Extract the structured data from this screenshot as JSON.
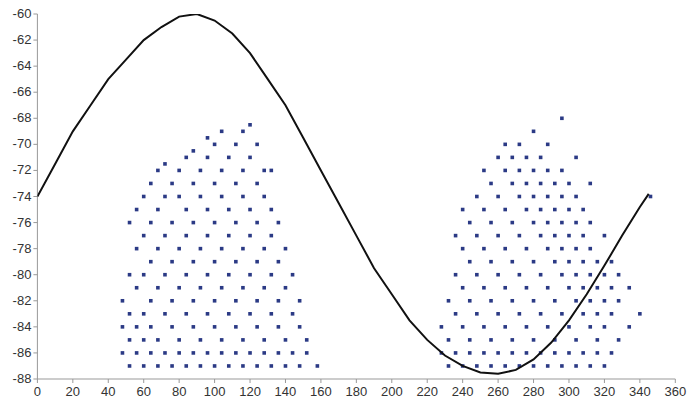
{
  "chart_data": {
    "type": "scatter",
    "xlim": [
      0,
      360
    ],
    "xticks": [
      0,
      20,
      40,
      60,
      80,
      100,
      120,
      140,
      160,
      180,
      200,
      220,
      240,
      260,
      280,
      300,
      320,
      340,
      360
    ],
    "ylim": [
      -88,
      -60
    ],
    "yticks": [
      -88,
      -86,
      -84,
      -82,
      -80,
      -78,
      -76,
      -74,
      -72,
      -70,
      -68,
      -66,
      -64,
      -62,
      -60
    ],
    "grid": false,
    "series": [
      {
        "type": "scatter",
        "color": "#2b3a85",
        "marker": "square",
        "x": [
          48,
          48,
          48,
          52,
          52,
          52,
          52,
          52,
          56,
          56,
          56,
          56,
          56,
          60,
          60,
          60,
          60,
          60,
          60,
          64,
          64,
          64,
          64,
          64,
          64,
          68,
          68,
          68,
          68,
          68,
          68,
          72,
          72,
          72,
          72,
          72,
          72,
          76,
          76,
          76,
          76,
          76,
          76,
          80,
          80,
          80,
          80,
          80,
          80,
          84,
          84,
          84,
          84,
          84,
          84,
          88,
          88,
          88,
          88,
          88,
          88,
          88,
          92,
          92,
          92,
          92,
          92,
          92,
          96,
          96,
          96,
          96,
          96,
          96,
          96,
          100,
          100,
          100,
          100,
          100,
          100,
          100,
          104,
          104,
          104,
          104,
          104,
          104,
          104,
          108,
          108,
          108,
          108,
          108,
          108,
          112,
          112,
          112,
          112,
          112,
          112,
          112,
          116,
          116,
          116,
          116,
          116,
          116,
          116,
          120,
          120,
          120,
          120,
          120,
          120,
          120,
          124,
          124,
          124,
          124,
          124,
          124,
          124,
          128,
          128,
          128,
          128,
          128,
          128,
          132,
          132,
          132,
          132,
          132,
          132,
          136,
          136,
          136,
          136,
          136,
          140,
          140,
          140,
          140,
          144,
          144,
          144,
          148,
          148,
          148,
          152,
          152,
          158,
          228,
          228,
          232,
          232,
          232,
          236,
          236,
          236,
          236,
          240,
          240,
          240,
          240,
          240,
          244,
          244,
          244,
          244,
          244,
          248,
          248,
          248,
          248,
          248,
          252,
          252,
          252,
          252,
          252,
          252,
          256,
          256,
          256,
          256,
          256,
          256,
          260,
          260,
          260,
          260,
          260,
          260,
          264,
          264,
          264,
          264,
          264,
          264,
          264,
          268,
          268,
          268,
          268,
          268,
          268,
          268,
          272,
          272,
          272,
          272,
          272,
          272,
          272,
          276,
          276,
          276,
          276,
          276,
          276,
          276,
          280,
          280,
          280,
          280,
          280,
          280,
          280,
          280,
          284,
          284,
          284,
          284,
          284,
          284,
          284,
          288,
          288,
          288,
          288,
          288,
          288,
          288,
          288,
          292,
          292,
          292,
          292,
          292,
          292,
          292,
          296,
          296,
          296,
          296,
          296,
          296,
          296,
          296,
          300,
          300,
          300,
          300,
          300,
          300,
          300,
          304,
          304,
          304,
          304,
          304,
          304,
          304,
          304,
          308,
          308,
          308,
          308,
          308,
          308,
          312,
          312,
          312,
          312,
          312,
          312,
          312,
          316,
          316,
          316,
          316,
          316,
          320,
          320,
          320,
          320,
          320,
          324,
          324,
          324,
          324,
          328,
          328,
          328,
          334,
          334,
          340,
          346
        ],
        "values": [
          -86,
          -84,
          -82,
          -87,
          -85,
          -83,
          -80,
          -76,
          -86,
          -84,
          -81,
          -78,
          -75,
          -87,
          -85,
          -83,
          -80,
          -77,
          -74,
          -86,
          -84,
          -82,
          -79,
          -76,
          -73,
          -87,
          -85,
          -81,
          -78,
          -75,
          -72,
          -86,
          -83,
          -80,
          -77,
          -74,
          -71.5,
          -87,
          -84,
          -82,
          -79,
          -76,
          -73,
          -86,
          -85,
          -81,
          -78,
          -74,
          -72,
          -87,
          -83,
          -80,
          -77,
          -75,
          -71,
          -86,
          -84,
          -82,
          -79,
          -76,
          -73,
          -70.5,
          -87,
          -85,
          -81,
          -78,
          -74,
          -72,
          -86,
          -83,
          -80,
          -77,
          -75,
          -71,
          -69.5,
          -87,
          -84,
          -82,
          -79,
          -76,
          -73,
          -70,
          -86,
          -85,
          -81,
          -78,
          -74,
          -72,
          -69,
          -87,
          -83,
          -80,
          -77,
          -75,
          -71,
          -86,
          -84,
          -82,
          -79,
          -76,
          -73,
          -70,
          -87,
          -85,
          -81,
          -78,
          -74,
          -72,
          -69,
          -86,
          -83,
          -80,
          -77,
          -75,
          -71,
          -68.5,
          -87,
          -84,
          -82,
          -79,
          -76,
          -73,
          -70,
          -86,
          -85,
          -81,
          -78,
          -74,
          -72,
          -87,
          -83,
          -80,
          -77,
          -75,
          -72,
          -86,
          -84,
          -82,
          -79,
          -76,
          -87,
          -85,
          -81,
          -78,
          -86,
          -83,
          -80,
          -87,
          -84,
          -82,
          -86,
          -85,
          -87,
          -86,
          -84,
          -87,
          -85,
          -82,
          -86,
          -83,
          -80,
          -77,
          -87,
          -84,
          -81,
          -78,
          -75,
          -86,
          -85,
          -82,
          -79,
          -76,
          -87,
          -83,
          -80,
          -77,
          -74,
          -86,
          -84,
          -81,
          -78,
          -75,
          -72,
          -87,
          -85,
          -82,
          -79,
          -76,
          -73,
          -86,
          -83,
          -80,
          -77,
          -74,
          -71,
          -87,
          -84,
          -81,
          -78,
          -75,
          -72,
          -70,
          -86,
          -85,
          -82,
          -79,
          -76,
          -73,
          -71,
          -87,
          -83,
          -80,
          -77,
          -74,
          -72,
          -70,
          -86,
          -84,
          -81,
          -78,
          -75,
          -73,
          -71,
          -87,
          -85,
          -82,
          -79,
          -76,
          -74,
          -72,
          -69,
          -86,
          -83,
          -80,
          -77,
          -75,
          -73,
          -71,
          -87,
          -84,
          -81,
          -78,
          -76,
          -74,
          -72,
          -70,
          -86,
          -85,
          -82,
          -79,
          -77,
          -75,
          -73,
          -87,
          -83,
          -80,
          -78,
          -76,
          -74,
          -72,
          -68,
          -86,
          -84,
          -81,
          -79,
          -77,
          -75,
          -73,
          -87,
          -85,
          -82,
          -80,
          -78,
          -76,
          -74,
          -71,
          -86,
          -83,
          -81,
          -79,
          -77,
          -75,
          -87,
          -84,
          -82,
          -80,
          -78,
          -76,
          -73,
          -86,
          -85,
          -83,
          -81,
          -79,
          -87,
          -84,
          -82,
          -80,
          -77,
          -86,
          -83,
          -81,
          -79,
          -85,
          -82,
          -80,
          -84,
          -81,
          -83,
          -74
        ]
      },
      {
        "type": "line",
        "color": "#111111",
        "line_style": "solid",
        "x": [
          0,
          10,
          20,
          30,
          40,
          50,
          60,
          70,
          80,
          90,
          100,
          110,
          120,
          130,
          140,
          150,
          160,
          170,
          180,
          190,
          200,
          210,
          220,
          230,
          240,
          250,
          260,
          270,
          280,
          290,
          300,
          310,
          320,
          330,
          340,
          345
        ],
        "values": [
          -74,
          -71.5,
          -69,
          -67,
          -65,
          -63.5,
          -62,
          -61,
          -60.2,
          -60,
          -60.5,
          -61.5,
          -63,
          -65,
          -67,
          -69.5,
          -72,
          -74.5,
          -77,
          -79.5,
          -81.5,
          -83.5,
          -85,
          -86.2,
          -87,
          -87.5,
          -87.6,
          -87.3,
          -86.5,
          -85.2,
          -83.5,
          -81.5,
          -79.3,
          -77,
          -74.8,
          -73.8
        ]
      }
    ]
  }
}
